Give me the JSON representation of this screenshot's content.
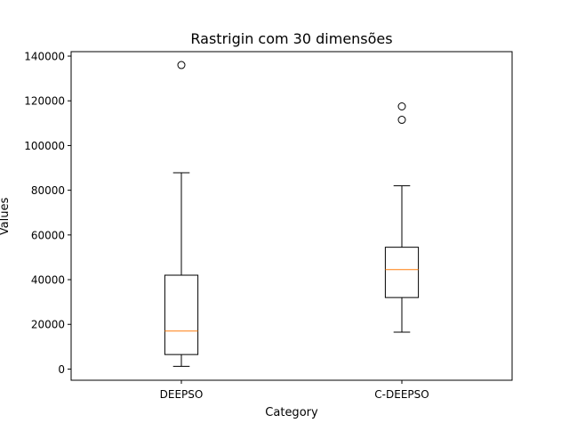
{
  "chart_data": {
    "type": "box",
    "title": "Rastrigin com 30 dimensões",
    "xlabel": "Category",
    "ylabel": "Values",
    "ylim": [
      -5000,
      142000
    ],
    "yticks": [
      0,
      20000,
      40000,
      60000,
      80000,
      100000,
      120000,
      140000
    ],
    "grid": false,
    "median_color": "#ff7f0e",
    "categories": [
      "DEEPSO",
      "C-DEEPSO"
    ],
    "boxes": [
      {
        "category": "DEEPSO",
        "whisker_low": 1200,
        "q1": 6500,
        "median": 17000,
        "q3": 42000,
        "whisker_high": 87800,
        "outliers": [
          136000
        ]
      },
      {
        "category": "C-DEEPSO",
        "whisker_low": 16500,
        "q1": 32000,
        "median": 44500,
        "q3": 54500,
        "whisker_high": 82000,
        "outliers": [
          117500,
          111500
        ]
      }
    ]
  }
}
